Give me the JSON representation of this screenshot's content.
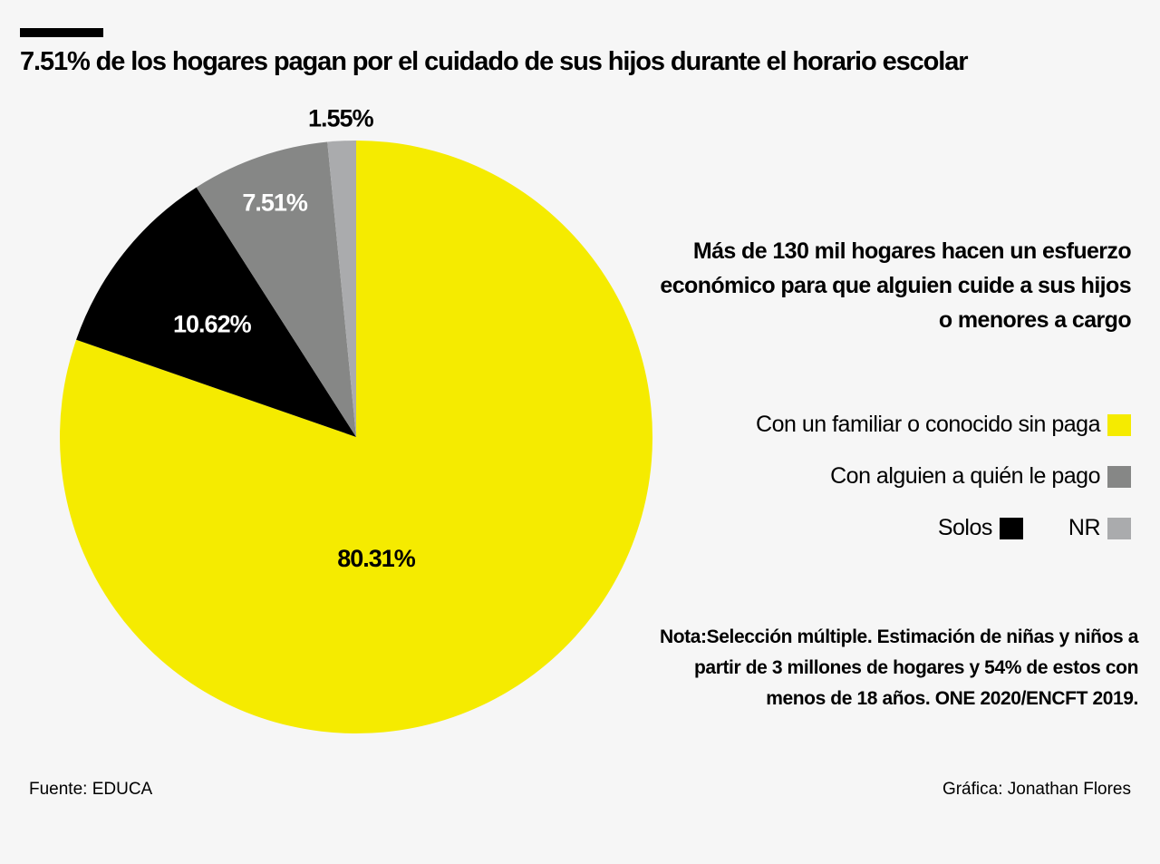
{
  "chart_data": {
    "type": "pie",
    "title": "7.51% de los hogares pagan por el cuidado de sus hijos durante el horario escolar",
    "subtitle": "Más de 130 mil hogares hacen un esfuerzo económico para que alguien cuide a sus hijos o menores a cargo",
    "slices": [
      {
        "name": "Con un familiar o conocido sin paga",
        "value": 80.31,
        "label": "80.31%",
        "color": "#f5eb00",
        "label_color": "#000000"
      },
      {
        "name": "Solos",
        "value": 10.62,
        "label": "10.62%",
        "color": "#000000",
        "label_color": "#ffffff"
      },
      {
        "name": "Con alguien a quién le pago",
        "value": 7.51,
        "label": "7.51%",
        "color": "#868786",
        "label_color": "#ffffff"
      },
      {
        "name": "NR",
        "value": 1.55,
        "label": "1.55%",
        "color": "#aaabad",
        "label_color": "#000000"
      }
    ],
    "start_angle": "12 o'clock",
    "direction": "clockwise",
    "legend_placement": "right"
  },
  "note": "Nota:Selección múltiple. Estimación de niñas y niños a partir de 3 millones de hogares y 54% de estos  con menos de 18 años. ONE 2020/ENCFT 2019.",
  "source": "Fuente: EDUCA",
  "credit": "Gráfica: Jonathan Flores"
}
